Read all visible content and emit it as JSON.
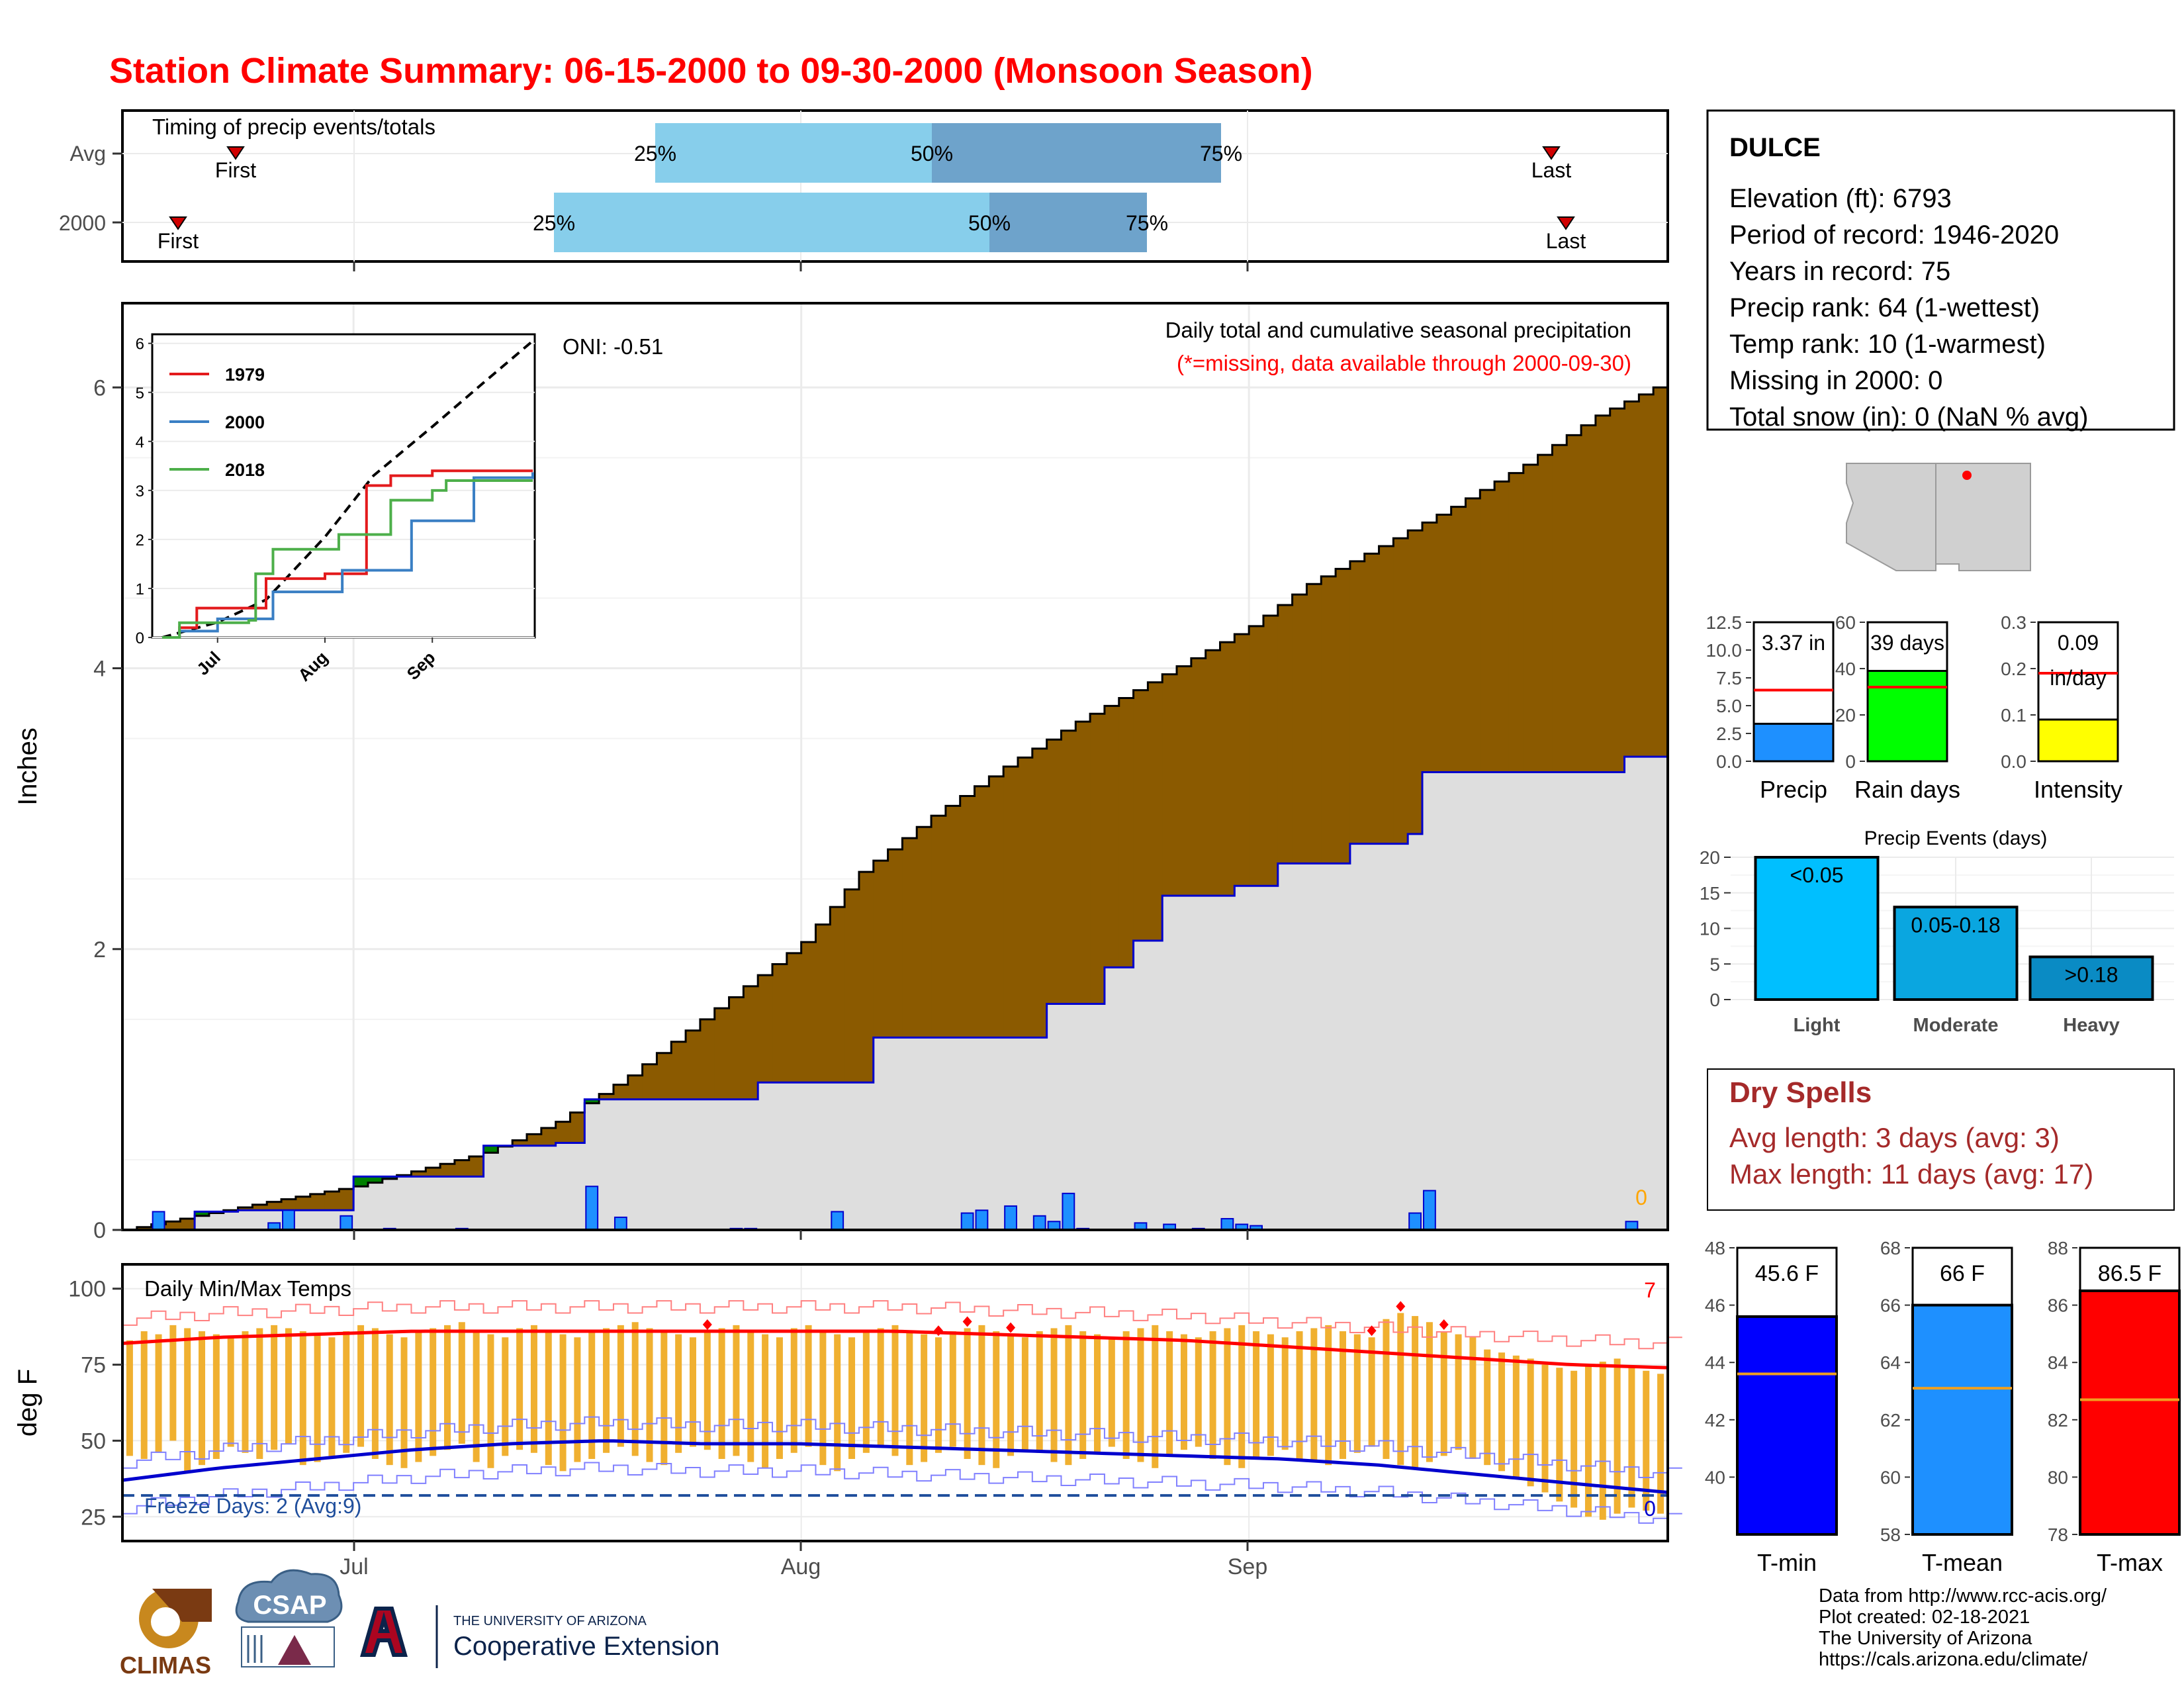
{
  "title": "Station Climate Summary: 06-15-2000 to 09-30-2000 (Monsoon Season)",
  "colors": {
    "title": "#ff0000",
    "timing_light": "#87ceeb",
    "timing_dark": "#6ea3cb",
    "cum_fill": "#8b5a00",
    "cum_below_avg": "#008000",
    "base_fill": "#dedede",
    "daily_bar": "#1e90ff",
    "temp_bar": "#f0b030",
    "tmax_line": "#ff0000",
    "tmin_line": "#0000cd",
    "dry_spell": "#a52a2a"
  },
  "month_labels": [
    "Jul",
    "Aug",
    "Sep"
  ],
  "timing": {
    "title": "Timing of precip events/totals",
    "rows": [
      {
        "label": "Avg",
        "first": "First",
        "p25": "25%",
        "p50": "50%",
        "p75": "75%",
        "last": "Last",
        "first_date": "2000-06-21",
        "p25_date": "2000-07-23",
        "p50_date": "2000-08-02",
        "p75_date": "2000-08-12",
        "last_date": "2000-09-28"
      },
      {
        "label": "2000",
        "first": "First",
        "p25": "25%",
        "p50": "50%",
        "p75": "75%",
        "last": "Last",
        "first_date": "2000-06-17",
        "p25_date": "2000-07-20",
        "p50_date": "2000-08-04",
        "p75_date": "2000-08-10",
        "last_date": "2000-09-29"
      }
    ]
  },
  "station": {
    "name": "DULCE",
    "lines": [
      "Elevation (ft): 6793",
      "Period of record: 1946-2020",
      "Years in record: 75",
      "Precip rank: 64 (1-wettest)",
      "Temp rank: 10 (1-warmest)",
      "Missing in 2000: 0",
      "Total snow (in): 0 (NaN % avg)"
    ]
  },
  "precip_panel": {
    "ylabel": "Inches",
    "title": "Daily total and cumulative seasonal precipitation",
    "subtitle": "(*=missing, data available through 2000-09-30)",
    "oni": "ONI: -0.51",
    "missing_count": "0",
    "y_ticks": [
      "0",
      "2",
      "4",
      "6"
    ]
  },
  "inset": {
    "legend": [
      "1979",
      "2000",
      "2018"
    ],
    "legend_colors": [
      "#e31a1c",
      "#3a7fc4",
      "#4daf4a"
    ],
    "y_ticks": [
      "0",
      "1",
      "2",
      "3",
      "4",
      "5",
      "6"
    ],
    "x_ticks": [
      "Jul",
      "Aug",
      "Sep"
    ]
  },
  "temp_panel": {
    "ylabel": "deg F",
    "title": "Daily Min/Max Temps",
    "freeze": "Freeze Days: 2 (Avg:9)",
    "hot_count": "7",
    "cold_count": "0",
    "y_ticks": [
      "25",
      "50",
      "75",
      "100"
    ]
  },
  "mini_bars": [
    {
      "label": "Precip",
      "value_text": "3.37 in",
      "ticks": [
        "0.0",
        "2.5",
        "5.0",
        "7.5",
        "10.0",
        "12.5"
      ]
    },
    {
      "label": "Rain days",
      "value_text": "39 days",
      "ticks": [
        "0",
        "20",
        "40",
        "60"
      ]
    },
    {
      "label": "Intensity",
      "value_text": "0.09 in/day",
      "value_line1": "0.09",
      "value_line2": "in/day",
      "ticks": [
        "0.0",
        "0.1",
        "0.2",
        "0.3"
      ]
    }
  ],
  "events": {
    "title": "Precip Events (days)",
    "ticks": [
      "0",
      "5",
      "10",
      "15",
      "20"
    ],
    "bars": [
      {
        "label": "Light",
        "range": "<0.05",
        "color": "#00bfff"
      },
      {
        "label": "Moderate",
        "range": "0.05-0.18",
        "color": "#0aa6e0"
      },
      {
        "label": "Heavy",
        "range": ">0.18",
        "color": "#0a8bc4"
      }
    ]
  },
  "dry_spells": {
    "title": "Dry Spells",
    "avg": "Avg length: 3 days (avg: 3)",
    "max": "Max length: 11 days (avg: 17)"
  },
  "temp_bars": [
    {
      "label": "T-min",
      "value_text": "45.6 F",
      "ticks": [
        "40",
        "42",
        "44",
        "46",
        "48"
      ],
      "color": "#0000ff"
    },
    {
      "label": "T-mean",
      "value_text": "66 F",
      "ticks": [
        "58",
        "60",
        "62",
        "64",
        "66",
        "68"
      ],
      "color": "#1e90ff"
    },
    {
      "label": "T-max",
      "value_text": "86.5 F",
      "ticks": [
        "78",
        "80",
        "82",
        "84",
        "86",
        "88"
      ],
      "color": "#ff0000"
    }
  ],
  "footer": {
    "credits": [
      "Data from http://www.rcc-acis.org/",
      "Plot created: 02-18-2021",
      "The University of Arizona",
      "https://cals.arizona.edu/climate/"
    ],
    "logos": {
      "climas": "CLIMAS",
      "csap": "CSAP",
      "ua_small": "THE UNIVERSITY OF ARIZONA",
      "ua_big": "Cooperative Extension"
    }
  },
  "chart_data": [
    {
      "type": "area",
      "title": "Daily total and cumulative seasonal precipitation",
      "ylabel": "Inches",
      "ylim": [
        0,
        6.6
      ],
      "x_range": [
        "2000-06-15",
        "2000-09-30"
      ],
      "series": [
        {
          "name": "2000",
          "x": [
            "2000-06-15",
            "2000-06-20",
            "2000-06-23",
            "2000-07-01",
            "2000-07-10",
            "2000-07-15",
            "2000-07-17",
            "2000-07-29",
            "2000-08-06",
            "2000-08-18",
            "2000-08-22",
            "2000-08-24",
            "2000-08-26",
            "2000-08-31",
            "2000-09-03",
            "2000-09-08",
            "2000-09-12",
            "2000-09-13",
            "2000-09-27",
            "2000-09-30"
          ],
          "y": [
            0,
            0.13,
            0.14,
            0.38,
            0.6,
            0.62,
            0.93,
            1.05,
            1.37,
            1.61,
            1.87,
            2.06,
            2.38,
            2.45,
            2.61,
            2.75,
            2.82,
            3.26,
            3.37,
            3.37
          ]
        },
        {
          "name": "avg",
          "x": [
            "2000-06-15",
            "2000-06-20",
            "2000-06-25",
            "2000-07-01",
            "2000-07-10",
            "2000-07-15",
            "2000-07-20",
            "2000-07-25",
            "2000-08-01",
            "2000-08-05",
            "2000-08-10",
            "2000-08-15",
            "2000-08-20",
            "2000-08-25",
            "2000-09-01",
            "2000-09-05",
            "2000-09-10",
            "2000-09-15",
            "2000-09-20",
            "2000-09-25",
            "2000-09-30"
          ],
          "y": [
            0,
            0.1,
            0.2,
            0.31,
            0.55,
            0.77,
            1.1,
            1.5,
            2.05,
            2.55,
            2.95,
            3.3,
            3.62,
            3.9,
            4.3,
            4.6,
            4.87,
            5.15,
            5.45,
            5.8,
            6.05
          ]
        }
      ],
      "daily_precip": {
        "dates": [
          "2000-06-17",
          "2000-06-25",
          "2000-06-26",
          "2000-06-30",
          "2000-07-03",
          "2000-07-08",
          "2000-07-17",
          "2000-07-19",
          "2000-07-27",
          "2000-07-28",
          "2000-08-03",
          "2000-08-12",
          "2000-08-13",
          "2000-08-15",
          "2000-08-17",
          "2000-08-18",
          "2000-08-19",
          "2000-08-20",
          "2000-08-24",
          "2000-08-26",
          "2000-08-28",
          "2000-08-30",
          "2000-08-31",
          "2000-09-01",
          "2000-09-12",
          "2000-09-13",
          "2000-09-27"
        ],
        "values": [
          0.13,
          0.05,
          0.14,
          0.1,
          0.01,
          0.01,
          0.31,
          0.09,
          0.01,
          0.01,
          0.13,
          0.12,
          0.14,
          0.17,
          0.1,
          0.06,
          0.26,
          0.01,
          0.05,
          0.04,
          0.01,
          0.08,
          0.04,
          0.03,
          0.12,
          0.28,
          0.06
        ]
      }
    },
    {
      "type": "line",
      "title": "",
      "x_range": [
        "2000-06-15",
        "2000-09-30"
      ],
      "ylim": [
        0,
        6
      ],
      "series": [
        {
          "name": "avg",
          "x": [
            "2000-06-15",
            "2000-07-01",
            "2000-07-15",
            "2000-08-01",
            "2000-08-15",
            "2000-09-01",
            "2000-09-15",
            "2000-09-30"
          ],
          "y": [
            0,
            0.31,
            0.77,
            2.05,
            3.3,
            4.3,
            5.15,
            6.05
          ]
        },
        {
          "name": "1979",
          "x": [
            "2000-06-15",
            "2000-06-20",
            "2000-06-25",
            "2000-07-05",
            "2000-07-15",
            "2000-08-01",
            "2000-08-13",
            "2000-08-20",
            "2000-09-01",
            "2000-09-30"
          ],
          "y": [
            0,
            0.2,
            0.6,
            0.6,
            1.2,
            1.3,
            3.1,
            3.3,
            3.4,
            3.4
          ]
        },
        {
          "name": "2000",
          "x": [
            "2000-06-15",
            "2000-06-20",
            "2000-07-01",
            "2000-07-17",
            "2000-08-06",
            "2000-08-26",
            "2000-09-13",
            "2000-09-30"
          ],
          "y": [
            0,
            0.13,
            0.38,
            0.93,
            1.37,
            2.38,
            3.26,
            3.37
          ]
        },
        {
          "name": "2018",
          "x": [
            "2000-06-15",
            "2000-06-20",
            "2000-07-10",
            "2000-07-12",
            "2000-07-17",
            "2000-08-02",
            "2000-08-05",
            "2000-08-20",
            "2000-09-01",
            "2000-09-05",
            "2000-09-30"
          ],
          "y": [
            0,
            0.3,
            0.35,
            1.3,
            1.8,
            1.8,
            2.1,
            2.8,
            3.0,
            3.2,
            3.2
          ]
        }
      ]
    },
    {
      "type": "bar",
      "title": "Daily Min/Max Temps",
      "ylabel": "deg F",
      "ylim": [
        17,
        108
      ],
      "x_range": [
        "2000-06-15",
        "2000-09-30"
      ],
      "series": [
        {
          "name": "tmax_2000",
          "y": [
            83,
            86,
            85,
            88,
            87,
            86,
            85,
            84,
            86,
            87,
            88,
            87,
            86,
            85,
            84,
            86,
            88,
            87,
            85,
            84,
            86,
            87,
            88,
            89,
            86,
            85,
            84,
            87,
            88,
            86,
            85,
            84,
            86,
            87,
            88,
            89,
            87,
            86,
            85,
            84,
            86,
            87,
            88,
            86,
            85,
            84,
            87,
            88,
            86,
            85,
            84,
            86,
            87,
            88,
            86,
            85,
            84,
            86,
            87,
            88,
            86,
            85,
            84,
            86,
            87,
            88,
            86,
            85,
            84,
            86,
            87,
            88,
            86,
            85,
            84,
            86,
            87,
            88,
            86,
            85,
            84,
            86,
            87,
            88,
            86,
            85,
            84,
            90,
            92,
            91,
            89,
            86,
            85,
            84,
            80,
            79,
            78,
            77,
            75,
            74,
            73,
            75,
            76,
            77,
            74,
            73,
            72
          ]
        },
        {
          "name": "tmin_2000",
          "y": [
            45,
            44,
            46,
            50,
            40,
            42,
            44,
            48,
            46,
            44,
            47,
            49,
            42,
            43,
            45,
            46,
            48,
            44,
            42,
            41,
            43,
            45,
            47,
            49,
            43,
            41,
            45,
            47,
            46,
            42,
            40,
            43,
            44,
            46,
            48,
            45,
            43,
            42,
            46,
            48,
            47,
            44,
            45,
            43,
            41,
            44,
            46,
            48,
            42,
            40,
            44,
            46,
            48,
            45,
            42,
            43,
            46,
            48,
            44,
            42,
            41,
            45,
            47,
            46,
            43,
            42,
            44,
            46,
            48,
            44,
            43,
            41,
            45,
            47,
            48,
            44,
            42,
            41,
            44,
            45,
            47,
            44,
            43,
            42,
            44,
            46,
            48,
            44,
            42,
            41,
            43,
            45,
            47,
            44,
            42,
            40,
            38,
            35,
            33,
            30,
            28,
            25,
            24,
            26,
            28,
            27,
            26
          ]
        },
        {
          "name": "avg_tmax",
          "y": [
            82,
            84,
            85,
            86,
            86,
            86,
            86,
            86,
            86,
            85,
            84,
            83,
            81,
            79,
            77,
            75,
            74
          ]
        },
        {
          "name": "avg_tmin",
          "y": [
            37,
            41,
            44,
            47,
            49,
            50,
            49,
            49,
            48,
            47,
            46,
            45,
            44,
            42,
            39,
            36,
            33
          ]
        }
      ],
      "freeze_line": 32
    },
    {
      "type": "bar",
      "categories": [
        "Precip"
      ],
      "values": [
        3.37
      ],
      "avg": 6.4,
      "ylim": [
        0,
        12.5
      ]
    },
    {
      "type": "bar",
      "categories": [
        "Rain days"
      ],
      "values": [
        39
      ],
      "avg": 32,
      "ylim": [
        0,
        60
      ]
    },
    {
      "type": "bar",
      "categories": [
        "Intensity"
      ],
      "values": [
        0.09
      ],
      "avg": 0.19,
      "ylim": [
        0,
        0.3
      ]
    },
    {
      "type": "bar",
      "title": "Precip Events (days)",
      "categories": [
        "Light",
        "Moderate",
        "Heavy"
      ],
      "values": [
        20,
        13,
        6
      ],
      "ylim": [
        0,
        20
      ]
    },
    {
      "type": "bar",
      "categories": [
        "T-min"
      ],
      "values": [
        45.6
      ],
      "avg": 43.6,
      "ylim": [
        38,
        48
      ]
    },
    {
      "type": "bar",
      "categories": [
        "T-mean"
      ],
      "values": [
        66
      ],
      "avg": 63.1,
      "ylim": [
        58,
        68
      ]
    },
    {
      "type": "bar",
      "categories": [
        "T-max"
      ],
      "values": [
        86.5
      ],
      "avg": 82.7,
      "ylim": [
        78,
        88
      ]
    }
  ]
}
